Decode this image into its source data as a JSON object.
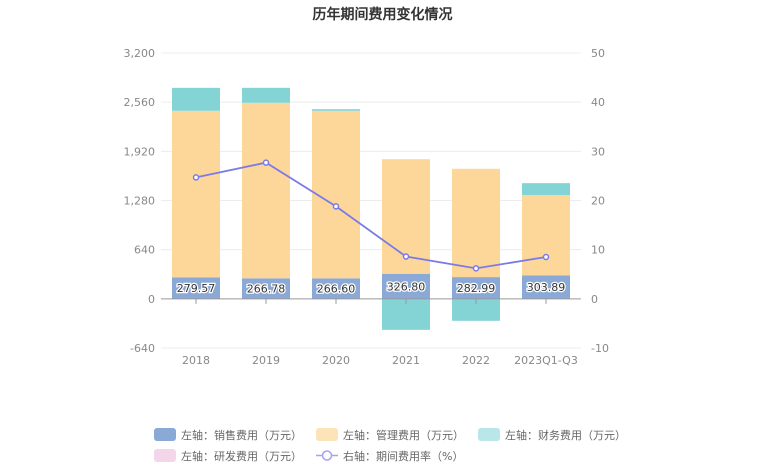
{
  "chart_data": {
    "type": "bar",
    "title": "历年期间费用变化情况",
    "categories": [
      "2018",
      "2019",
      "2020",
      "2021",
      "2022",
      "2023Q1-Q3"
    ],
    "left_axis": {
      "ylim": [
        -640,
        3200
      ],
      "ticks": [
        "3,200",
        "2,560",
        "1,920",
        "1,280",
        "640",
        "0",
        "-640"
      ],
      "tick_values": [
        3200,
        2560,
        1920,
        1280,
        640,
        0,
        -640
      ]
    },
    "right_axis": {
      "ylim": [
        -10,
        50
      ],
      "ticks": [
        "50",
        "40",
        "30",
        "20",
        "10",
        "0",
        "-10"
      ],
      "tick_values": [
        50,
        40,
        30,
        20,
        10,
        0,
        -10
      ]
    },
    "grid": true,
    "legend_position": "bottom",
    "series": [
      {
        "name": "左轴：销售费用（万元）",
        "type": "bar",
        "stack": true,
        "color": "#8aa9d6",
        "values": [
          279.57,
          266.78,
          266.6,
          326.8,
          282.99,
          303.89
        ],
        "labels": [
          "279.57",
          "266.78",
          "266.60",
          "326.80",
          "282.99",
          "303.89"
        ]
      },
      {
        "name": "左轴：管理费用（万元）",
        "type": "bar",
        "stack": true,
        "color": "#fdd79a",
        "values": [
          2168,
          2285,
          2181,
          1491,
          1410,
          1046
        ]
      },
      {
        "name": "左轴：财务费用（万元）",
        "type": "bar",
        "stack": true,
        "color": "#84d4d6",
        "values": [
          299,
          195,
          21,
          -404,
          -286,
          156
        ]
      },
      {
        "name": "左轴：研发费用（万元）",
        "type": "bar",
        "stack": true,
        "color": "#f3d6ea",
        "values": [
          0,
          0,
          0,
          0,
          0,
          0
        ]
      },
      {
        "name": "右轴：期间费用率（%）",
        "type": "line",
        "axis": "right",
        "color": "#7b7be6",
        "values": [
          24.7,
          27.7,
          18.8,
          8.6,
          6.2,
          8.5
        ]
      }
    ]
  }
}
